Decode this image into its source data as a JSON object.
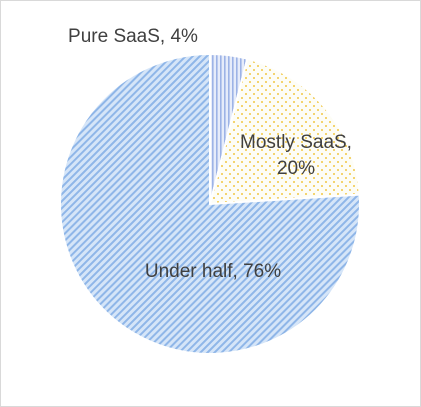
{
  "chart_data": {
    "type": "pie",
    "title": "",
    "slices": [
      {
        "label": "Pure SaaS",
        "value": 4,
        "display": "Pure SaaS, 4%",
        "color": "#9db3e6",
        "pattern": "vertical-stripes"
      },
      {
        "label": "Mostly SaaS",
        "value": 20,
        "display_lines": [
          "Mostly SaaS,",
          "20%"
        ],
        "color": "#f2c744",
        "pattern": "dots"
      },
      {
        "label": "Under half",
        "value": 76,
        "display": "Under half, 76%",
        "color": "#8fb6e8",
        "pattern": "diagonal-stripes"
      }
    ],
    "legend": "none",
    "start_angle_deg": 0,
    "direction": "clockwise"
  }
}
